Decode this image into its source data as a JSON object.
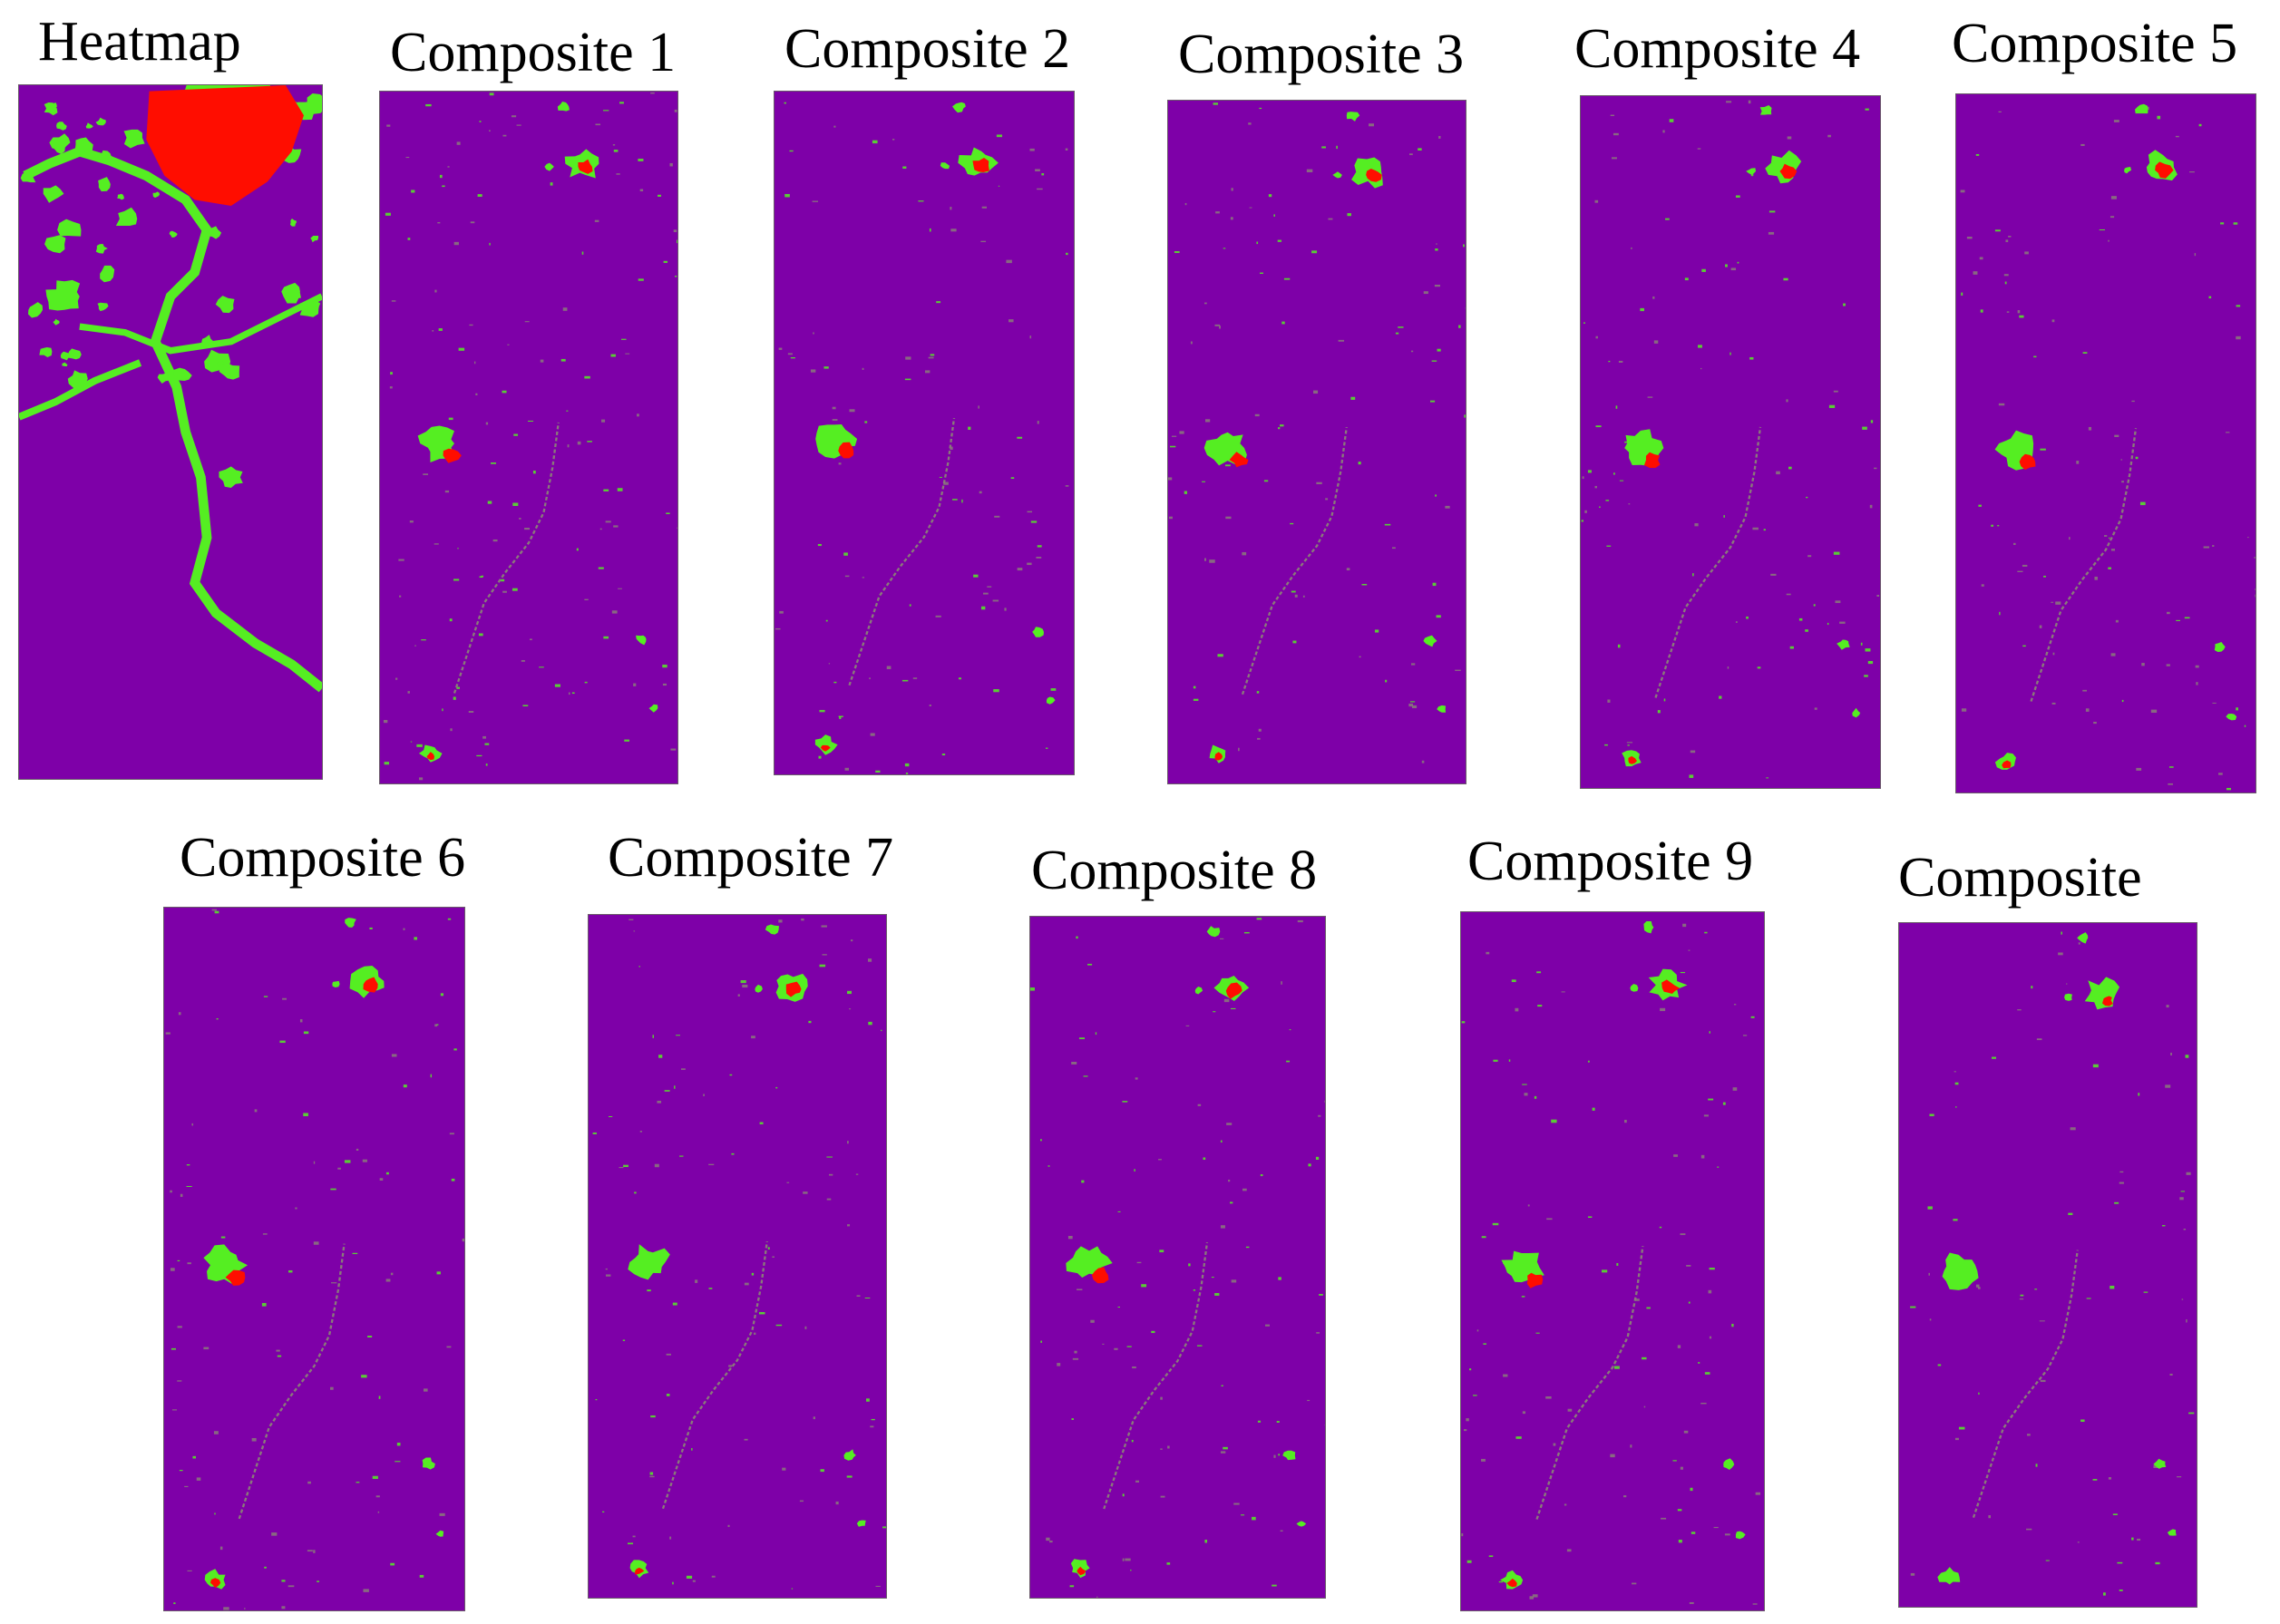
{
  "colors": {
    "background": "#7e00a8",
    "vegetation": "#55ee22",
    "hotspot": "#ff0d00",
    "edge": "#8a7a7a"
  },
  "panels": [
    {
      "id": "heatmap",
      "label": "Heatmap"
    },
    {
      "id": "composite-1",
      "label": "Composite 1"
    },
    {
      "id": "composite-2",
      "label": "Composite 2"
    },
    {
      "id": "composite-3",
      "label": "Composite 3"
    },
    {
      "id": "composite-4",
      "label": "Composite 4"
    },
    {
      "id": "composite-5",
      "label": "Composite 5"
    },
    {
      "id": "composite-6",
      "label": "Composite 6"
    },
    {
      "id": "composite-7",
      "label": "Composite 7"
    },
    {
      "id": "composite-8",
      "label": "Composite 8"
    },
    {
      "id": "composite-9",
      "label": "Composite 9"
    },
    {
      "id": "composite-10",
      "label": "Composite"
    }
  ]
}
